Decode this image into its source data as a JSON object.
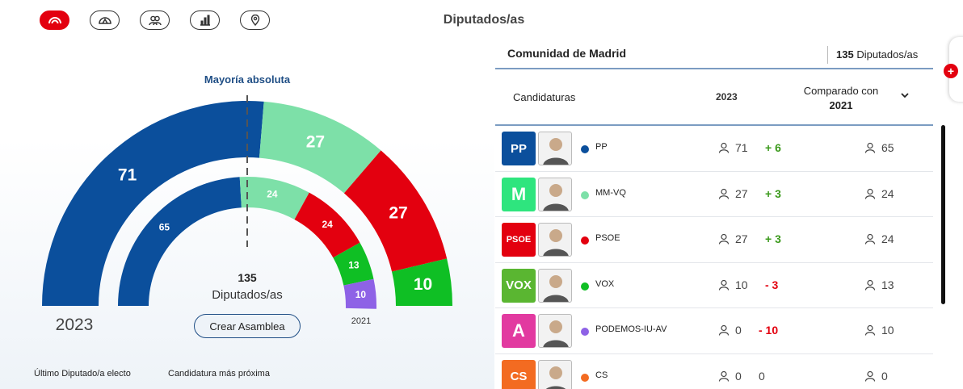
{
  "header": {
    "title": "Diputados/as"
  },
  "nav": [
    {
      "icon": "hemicycle-icon",
      "active": true
    },
    {
      "icon": "map-hemicycle-icon",
      "active": false
    },
    {
      "icon": "users-icon",
      "active": false
    },
    {
      "icon": "bar-chart-icon",
      "active": false
    },
    {
      "icon": "map-pin-icon",
      "active": false
    }
  ],
  "chart_data": {
    "type": "hemicycle",
    "title": "",
    "majority_label": "Mayoría absoluta",
    "total": "135",
    "total_label": "Diputados/as",
    "series": [
      {
        "name": "2023",
        "slices": [
          {
            "party": "PP",
            "value": 71,
            "color": "#0b4f9c"
          },
          {
            "party": "MM-VQ",
            "value": 27,
            "color": "#7de0a8"
          },
          {
            "party": "PSOE",
            "value": 27,
            "color": "#e3000f"
          },
          {
            "party": "VOX",
            "value": 10,
            "color": "#0fbf24"
          }
        ]
      },
      {
        "name": "2021",
        "slices": [
          {
            "party": "PP",
            "value": 65,
            "color": "#0b4f9c"
          },
          {
            "party": "MM-VQ",
            "value": 24,
            "color": "#7de0a8"
          },
          {
            "party": "PSOE",
            "value": 24,
            "color": "#e3000f"
          },
          {
            "party": "VOX",
            "value": 13,
            "color": "#0fbf24"
          },
          {
            "party": "PODEMOS-IU-AV",
            "value": 10,
            "color": "#8e62e6"
          }
        ]
      }
    ]
  },
  "left": {
    "year_main": "2023",
    "year_prev": "2021",
    "button": "Crear Asamblea",
    "footer_a": "Último Diputado/a electo",
    "footer_b": "Candidatura más próxima"
  },
  "table": {
    "region": "Comunidad de Madrid",
    "total_num": "135",
    "total_label": "Diputados/as",
    "col_cand": "Candidaturas",
    "col_year": "2023",
    "col_comp": "Comparado con",
    "col_comp_year": "2021",
    "rows": [
      {
        "party": "PP",
        "color": "#0b4f9c",
        "logo_text": "PP",
        "logo_bg": "#0b4f9c",
        "seats": "71",
        "diff": "+ 6",
        "diff_color": "#3b9a1c",
        "prev": "65"
      },
      {
        "party": "MM-VQ",
        "color": "#7de0a8",
        "logo_text": "M",
        "logo_bg": "#2ee57e",
        "seats": "27",
        "diff": "+ 3",
        "diff_color": "#3b9a1c",
        "prev": "24"
      },
      {
        "party": "PSOE",
        "color": "#e3000f",
        "logo_text": "PSOE",
        "logo_bg": "#e3000f",
        "seats": "27",
        "diff": "+ 3",
        "diff_color": "#3b9a1c",
        "prev": "24"
      },
      {
        "party": "VOX",
        "color": "#0fbf24",
        "logo_text": "VOX",
        "logo_bg": "#5ab631",
        "seats": "10",
        "diff": "- 3",
        "diff_color": "#e3000f",
        "prev": "13"
      },
      {
        "party": "PODEMOS-IU-AV",
        "color": "#8e62e6",
        "logo_text": "A",
        "logo_bg": "#e23aa0",
        "seats": "0",
        "diff": "- 10",
        "diff_color": "#e3000f",
        "prev": "10"
      },
      {
        "party": "CS",
        "color": "#f36b21",
        "logo_text": "CS",
        "logo_bg": "#f36b21",
        "seats": "0",
        "diff": "0",
        "diff_color": "#444444",
        "prev": "0"
      }
    ]
  }
}
